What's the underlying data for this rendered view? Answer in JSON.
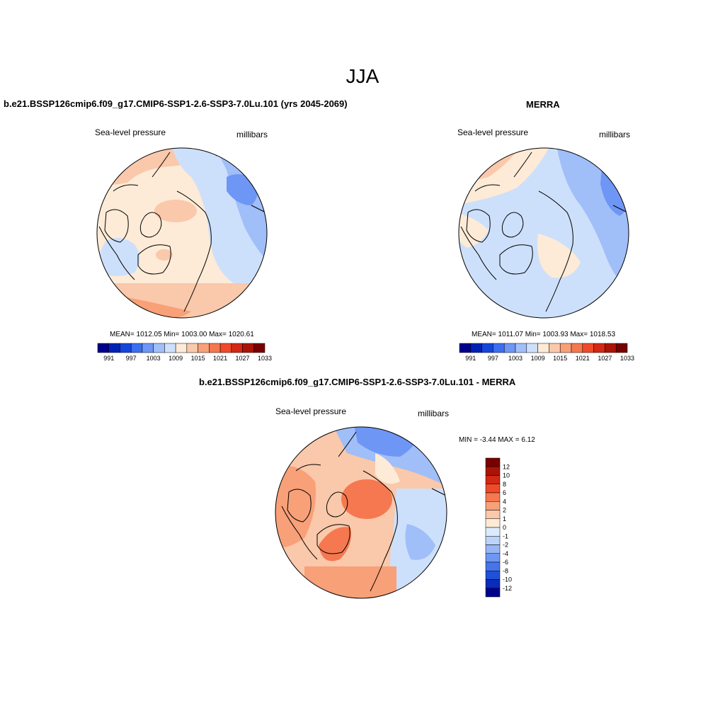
{
  "season": "JJA",
  "panels": [
    {
      "title": "b.e21.BSSP126cmip6.f09_g17.CMIP6-SSP1-2.6-SSP3-7.0Lu.101 (yrs 2045-2069)",
      "left_label": "Sea-level pressure",
      "right_label": "millibars",
      "stats": "MEAN= 1012.05  Min= 1003.00  Max= 1020.61"
    },
    {
      "title": "MERRA",
      "left_label": "Sea-level pressure",
      "right_label": "millibars",
      "stats": "MEAN= 1011.07  Min= 1003.93  Max= 1018.53"
    },
    {
      "title": "b.e21.BSSP126cmip6.f09_g17.CMIP6-SSP1-2.6-SSP3-7.0Lu.101 - MERRA",
      "left_label": "Sea-level pressure",
      "right_label": "millibars",
      "stats": "MIN =  -3.44 MAX =   6.12"
    }
  ],
  "abs_colorbar": {
    "colors": [
      "#00008c",
      "#0022b4",
      "#1446dc",
      "#3c6ef0",
      "#6e96f5",
      "#a0bef8",
      "#cde0fb",
      "#fdebd7",
      "#fac8aa",
      "#f8a078",
      "#f57850",
      "#f04a28",
      "#d22814",
      "#aa1406",
      "#780000"
    ],
    "labels": [
      "991",
      "997",
      "1003",
      "1009",
      "1015",
      "1021",
      "1027",
      "1033"
    ]
  },
  "diff_colorbar": {
    "colors_top_to_bottom": [
      "#780000",
      "#aa1406",
      "#d22814",
      "#f04a28",
      "#f57850",
      "#f8a078",
      "#fac8aa",
      "#fdebd7",
      "#dceafc",
      "#bcd4fa",
      "#96b6f6",
      "#6e96f2",
      "#4674ea",
      "#2050d8",
      "#0a2cb8",
      "#00008c"
    ],
    "labels_top_to_bottom": [
      "12",
      "10",
      "8",
      "6",
      "4",
      "2",
      "1",
      "0",
      "-1",
      "-2",
      "-4",
      "-6",
      "-8",
      "-10",
      "-12"
    ]
  }
}
